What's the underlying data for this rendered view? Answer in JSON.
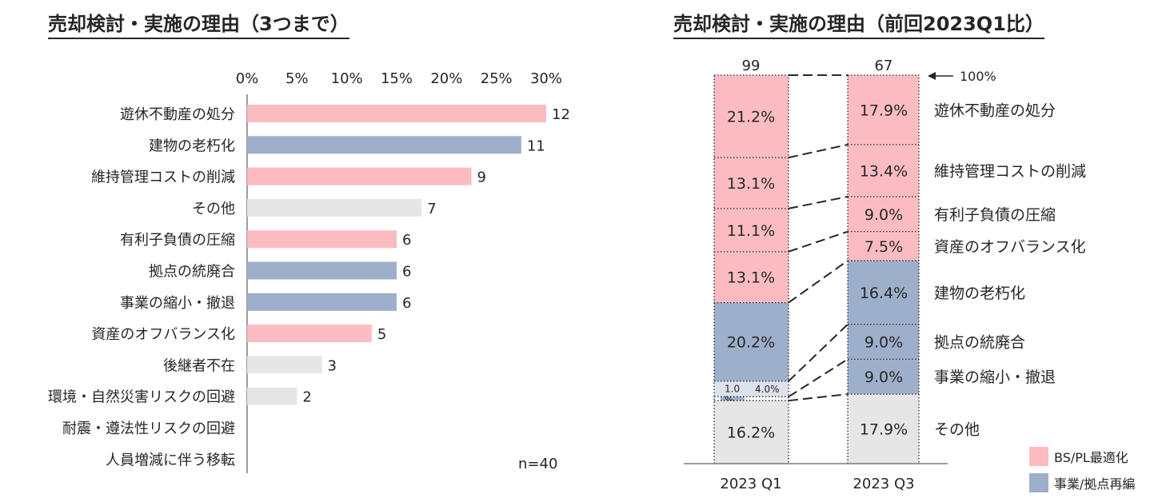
{
  "colors": {
    "bs_pl": "#fbbcc1",
    "business": "#9eafcc",
    "other": "#e6e6e6",
    "text": "#262626"
  },
  "chart_data": [
    {
      "type": "bar",
      "orientation": "horizontal",
      "title": "売却検討・実施の理由（3つまで）",
      "x_axis_ticks": [
        "0%",
        "5%",
        "10%",
        "15%",
        "20%",
        "25%",
        "30%"
      ],
      "xlim": [
        0,
        30
      ],
      "n_total": 40,
      "n_label": "n=40",
      "categories": [
        "遊休不動産の処分",
        "建物の老朽化",
        "維持管理コストの削減",
        "その他",
        "有利子負債の圧縮",
        "拠点の統廃合",
        "事業の縮小・撤退",
        "資産のオフバランス化",
        "後継者不在",
        "環境・自然災害リスクの回避",
        "耐震・遵法性リスクの回避",
        "人員増減に伴う移転"
      ],
      "values": [
        12,
        11,
        9,
        7,
        6,
        6,
        6,
        5,
        3,
        2,
        0,
        0
      ],
      "value_labels": [
        "12",
        "11",
        "9",
        "7",
        "6",
        "6",
        "6",
        "5",
        "3",
        "2",
        "",
        ""
      ],
      "groups": [
        "bs_pl",
        "business",
        "bs_pl",
        "other",
        "bs_pl",
        "business",
        "business",
        "bs_pl",
        "other",
        "other",
        "other",
        "other"
      ]
    },
    {
      "type": "stacked_bar",
      "title": "売却検討・実施の理由（前回2023Q1比）",
      "categories": [
        "2023 Q1",
        "2023 Q3"
      ],
      "totals": [
        "99",
        "67"
      ],
      "total_marker": "100%",
      "series_order_top_to_bottom": [
        "遊休不動産の処分",
        "維持管理コストの削減",
        "有利子負債の圧縮",
        "資産のオフバランス化",
        "建物の老朽化",
        "拠点の統廃合",
        "事業の縮小・撤退",
        "その他"
      ],
      "series_groups": [
        "bs_pl",
        "bs_pl",
        "bs_pl",
        "bs_pl",
        "business",
        "business",
        "business",
        "other"
      ],
      "q1_values": [
        21.2,
        13.1,
        11.1,
        13.1,
        20.2,
        4.0,
        1.0,
        16.2
      ],
      "q3_values": [
        17.9,
        13.4,
        9.0,
        7.5,
        16.4,
        9.0,
        9.0,
        17.9
      ],
      "q1_labels": [
        "21.2%",
        "13.1%",
        "11.1%",
        "13.1%",
        "20.2%",
        "4.0%",
        "1.0\n%",
        "16.2%"
      ],
      "q3_labels": [
        "17.9%",
        "13.4%",
        "9.0%",
        "7.5%",
        "16.4%",
        "9.0%",
        "9.0%",
        "17.9%"
      ],
      "legend": [
        {
          "group": "bs_pl",
          "label": "BS/PL最適化"
        },
        {
          "group": "business",
          "label": "事業/拠点再編"
        }
      ]
    }
  ]
}
